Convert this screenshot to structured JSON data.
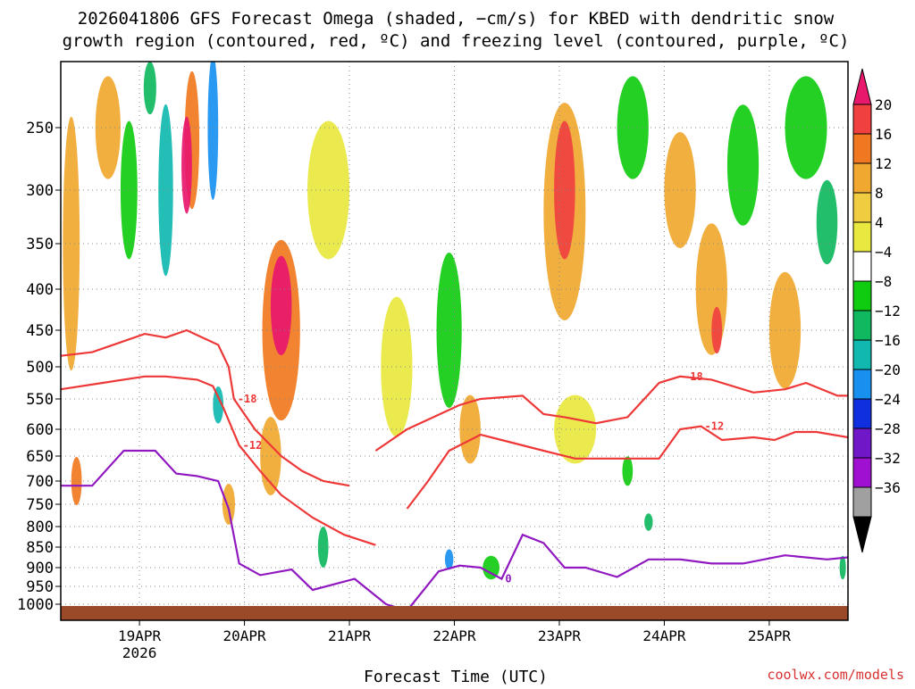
{
  "chart_data": {
    "type": "heatmap",
    "title_line1": "2026041806 GFS Forecast Omega (shaded, −cm/s) for KBED with dendritic snow",
    "title_line2": "growth region (contoured, red, ºC) and freezing level (contoured, purple, ºC)",
    "xlabel": "Forecast Time (UTC)",
    "credit": "coolwx.com/models",
    "x_ticks": [
      {
        "label": "19APR",
        "sub": "2026",
        "t": 0.75
      },
      {
        "label": "20APR",
        "sub": "",
        "t": 1.75
      },
      {
        "label": "21APR",
        "sub": "",
        "t": 2.75
      },
      {
        "label": "22APR",
        "sub": "",
        "t": 3.75
      },
      {
        "label": "23APR",
        "sub": "",
        "t": 4.75
      },
      {
        "label": "24APR",
        "sub": "",
        "t": 5.75
      },
      {
        "label": "25APR",
        "sub": "",
        "t": 6.75
      }
    ],
    "x_range_days": [
      0,
      7.5
    ],
    "y_ticks": [
      {
        "label": "250",
        "p": 250
      },
      {
        "label": "300",
        "p": 300
      },
      {
        "label": "350",
        "p": 350
      },
      {
        "label": "400",
        "p": 400
      },
      {
        "label": "450",
        "p": 450
      },
      {
        "label": "500",
        "p": 500
      },
      {
        "label": "550",
        "p": 550
      },
      {
        "label": "600",
        "p": 600
      },
      {
        "label": "650",
        "p": 650
      },
      {
        "label": "700",
        "p": 700
      },
      {
        "label": "750",
        "p": 750
      },
      {
        "label": "800",
        "p": 800
      },
      {
        "label": "850",
        "p": 850
      },
      {
        "label": "900",
        "p": 900
      },
      {
        "label": "950",
        "p": 950
      },
      {
        "label": "1000",
        "p": 1000
      }
    ],
    "y_range_hpa": [
      200,
      1025
    ],
    "colorbar": {
      "labels": [
        "20",
        "16",
        "12",
        "8",
        "4",
        "−4",
        "−8",
        "−12",
        "−16",
        "−20",
        "−24",
        "−28",
        "−32",
        "−36"
      ],
      "colors": [
        "#e8186c",
        "#f04040",
        "#f07820",
        "#f0a830",
        "#f0cc40",
        "#e8e840",
        "#ffffff",
        "#10cc10",
        "#10b860",
        "#10b8b0",
        "#1890f0",
        "#1030e0",
        "#7018c8",
        "#a010d0",
        "#a0a0a0",
        "#000000"
      ]
    },
    "omega_blobs": [
      {
        "t": 0.1,
        "p": 350,
        "dt": 0.08,
        "dp": 250,
        "v": 8
      },
      {
        "t": 0.15,
        "p": 700,
        "dt": 0.05,
        "dp": 100,
        "v": 12
      },
      {
        "t": 0.45,
        "p": 250,
        "dt": 0.12,
        "dp": 80,
        "v": 8
      },
      {
        "t": 0.65,
        "p": 300,
        "dt": 0.08,
        "dp": 120,
        "v": -8
      },
      {
        "t": 0.85,
        "p": 220,
        "dt": 0.06,
        "dp": 40,
        "v": -12
      },
      {
        "t": 1.0,
        "p": 300,
        "dt": 0.07,
        "dp": 150,
        "v": -16
      },
      {
        "t": 1.25,
        "p": 260,
        "dt": 0.07,
        "dp": 110,
        "v": 14
      },
      {
        "t": 1.2,
        "p": 280,
        "dt": 0.05,
        "dp": 80,
        "v": 20
      },
      {
        "t": 1.45,
        "p": 250,
        "dt": 0.05,
        "dp": 130,
        "v": -20
      },
      {
        "t": 1.5,
        "p": 560,
        "dt": 0.05,
        "dp": 60,
        "v": -16
      },
      {
        "t": 1.6,
        "p": 750,
        "dt": 0.06,
        "dp": 90,
        "v": 10
      },
      {
        "t": 2.1,
        "p": 450,
        "dt": 0.18,
        "dp": 230,
        "v": 14
      },
      {
        "t": 2.1,
        "p": 420,
        "dt": 0.1,
        "dp": 120,
        "v": 20
      },
      {
        "t": 2.0,
        "p": 650,
        "dt": 0.1,
        "dp": 150,
        "v": 8
      },
      {
        "t": 2.55,
        "p": 300,
        "dt": 0.2,
        "dp": 120,
        "v": 5
      },
      {
        "t": 2.5,
        "p": 850,
        "dt": 0.05,
        "dp": 100,
        "v": -12
      },
      {
        "t": 3.2,
        "p": 500,
        "dt": 0.15,
        "dp": 200,
        "v": 5
      },
      {
        "t": 3.7,
        "p": 450,
        "dt": 0.12,
        "dp": 200,
        "v": -8
      },
      {
        "t": 3.7,
        "p": 880,
        "dt": 0.04,
        "dp": 50,
        "v": -20
      },
      {
        "t": 3.9,
        "p": 600,
        "dt": 0.1,
        "dp": 120,
        "v": 8
      },
      {
        "t": 4.1,
        "p": 900,
        "dt": 0.08,
        "dp": 60,
        "v": -8
      },
      {
        "t": 4.8,
        "p": 320,
        "dt": 0.2,
        "dp": 200,
        "v": 10
      },
      {
        "t": 4.8,
        "p": 300,
        "dt": 0.1,
        "dp": 120,
        "v": 16
      },
      {
        "t": 4.9,
        "p": 600,
        "dt": 0.2,
        "dp": 120,
        "v": 5
      },
      {
        "t": 5.45,
        "p": 250,
        "dt": 0.15,
        "dp": 80,
        "v": -8
      },
      {
        "t": 5.9,
        "p": 300,
        "dt": 0.15,
        "dp": 100,
        "v": 8
      },
      {
        "t": 6.2,
        "p": 400,
        "dt": 0.15,
        "dp": 150,
        "v": 8
      },
      {
        "t": 6.25,
        "p": 450,
        "dt": 0.05,
        "dp": 60,
        "v": 16
      },
      {
        "t": 6.5,
        "p": 280,
        "dt": 0.15,
        "dp": 100,
        "v": -8
      },
      {
        "t": 6.9,
        "p": 450,
        "dt": 0.15,
        "dp": 150,
        "v": 8
      },
      {
        "t": 7.1,
        "p": 250,
        "dt": 0.2,
        "dp": 80,
        "v": -8
      },
      {
        "t": 7.3,
        "p": 330,
        "dt": 0.1,
        "dp": 80,
        "v": -12
      },
      {
        "t": 5.4,
        "p": 680,
        "dt": 0.05,
        "dp": 60,
        "v": -8
      },
      {
        "t": 5.6,
        "p": 790,
        "dt": 0.04,
        "dp": 40,
        "v": -12
      },
      {
        "t": 7.45,
        "p": 900,
        "dt": 0.03,
        "dp": 60,
        "v": -12
      }
    ],
    "contours": [
      {
        "name": "-18 (upper)",
        "color": "#ee3838",
        "label": "-18",
        "points": [
          [
            0,
            485
          ],
          [
            0.3,
            480
          ],
          [
            0.8,
            455
          ],
          [
            1.0,
            460
          ],
          [
            1.2,
            450
          ],
          [
            1.35,
            460
          ],
          [
            1.5,
            470
          ],
          [
            1.6,
            500
          ],
          [
            1.65,
            550
          ],
          [
            1.85,
            600
          ],
          [
            2.1,
            650
          ],
          [
            2.3,
            680
          ],
          [
            2.5,
            700
          ],
          [
            2.75,
            710
          ]
        ]
      },
      {
        "name": "-12 (upper)",
        "color": "#ee3838",
        "label": "-12",
        "points": [
          [
            0,
            535
          ],
          [
            0.4,
            525
          ],
          [
            0.8,
            515
          ],
          [
            1.0,
            515
          ],
          [
            1.3,
            520
          ],
          [
            1.45,
            530
          ],
          [
            1.55,
            565
          ],
          [
            1.7,
            630
          ],
          [
            1.9,
            680
          ],
          [
            2.1,
            730
          ],
          [
            2.4,
            780
          ],
          [
            2.7,
            820
          ],
          [
            3.0,
            845
          ]
        ]
      },
      {
        "name": "-18 (middle)",
        "color": "#ee3838",
        "label": "-18",
        "points": [
          [
            3.0,
            640
          ],
          [
            3.3,
            600
          ],
          [
            3.8,
            560
          ],
          [
            4.0,
            550
          ],
          [
            4.4,
            545
          ],
          [
            4.6,
            575
          ],
          [
            4.8,
            580
          ],
          [
            5.1,
            590
          ],
          [
            5.4,
            580
          ],
          [
            5.7,
            525
          ],
          [
            5.9,
            515
          ],
          [
            6.2,
            520
          ],
          [
            6.6,
            540
          ],
          [
            6.9,
            535
          ],
          [
            7.1,
            525
          ],
          [
            7.4,
            545
          ],
          [
            7.5,
            545
          ]
        ]
      },
      {
        "name": "-12 (middle)",
        "color": "#ee3838",
        "label": "-12",
        "points": [
          [
            3.3,
            760
          ],
          [
            3.5,
            700
          ],
          [
            3.7,
            640
          ],
          [
            4.0,
            610
          ],
          [
            4.3,
            625
          ],
          [
            4.6,
            640
          ],
          [
            4.9,
            655
          ],
          [
            5.3,
            655
          ],
          [
            5.7,
            655
          ],
          [
            5.9,
            600
          ],
          [
            6.1,
            595
          ],
          [
            6.3,
            620
          ],
          [
            6.6,
            615
          ],
          [
            6.8,
            620
          ],
          [
            7.0,
            605
          ],
          [
            7.2,
            605
          ],
          [
            7.5,
            615
          ]
        ]
      },
      {
        "name": "0 freezing",
        "color": "#9018c0",
        "label": "0",
        "points": [
          [
            0,
            710
          ],
          [
            0.3,
            710
          ],
          [
            0.6,
            640
          ],
          [
            0.9,
            640
          ],
          [
            1.1,
            685
          ],
          [
            1.3,
            690
          ],
          [
            1.5,
            700
          ],
          [
            1.6,
            760
          ],
          [
            1.7,
            890
          ],
          [
            1.9,
            920
          ],
          [
            2.2,
            905
          ],
          [
            2.4,
            960
          ],
          [
            2.8,
            930
          ],
          [
            3.1,
            1000
          ],
          [
            3.3,
            1010
          ],
          [
            3.6,
            910
          ],
          [
            3.8,
            895
          ],
          [
            4.0,
            900
          ],
          [
            4.2,
            930
          ],
          [
            4.4,
            820
          ],
          [
            4.6,
            840
          ],
          [
            4.8,
            900
          ],
          [
            5.0,
            900
          ],
          [
            5.3,
            925
          ],
          [
            5.6,
            880
          ],
          [
            5.9,
            880
          ],
          [
            6.2,
            890
          ],
          [
            6.5,
            890
          ],
          [
            6.9,
            870
          ],
          [
            7.3,
            880
          ],
          [
            7.5,
            875
          ]
        ]
      }
    ]
  }
}
